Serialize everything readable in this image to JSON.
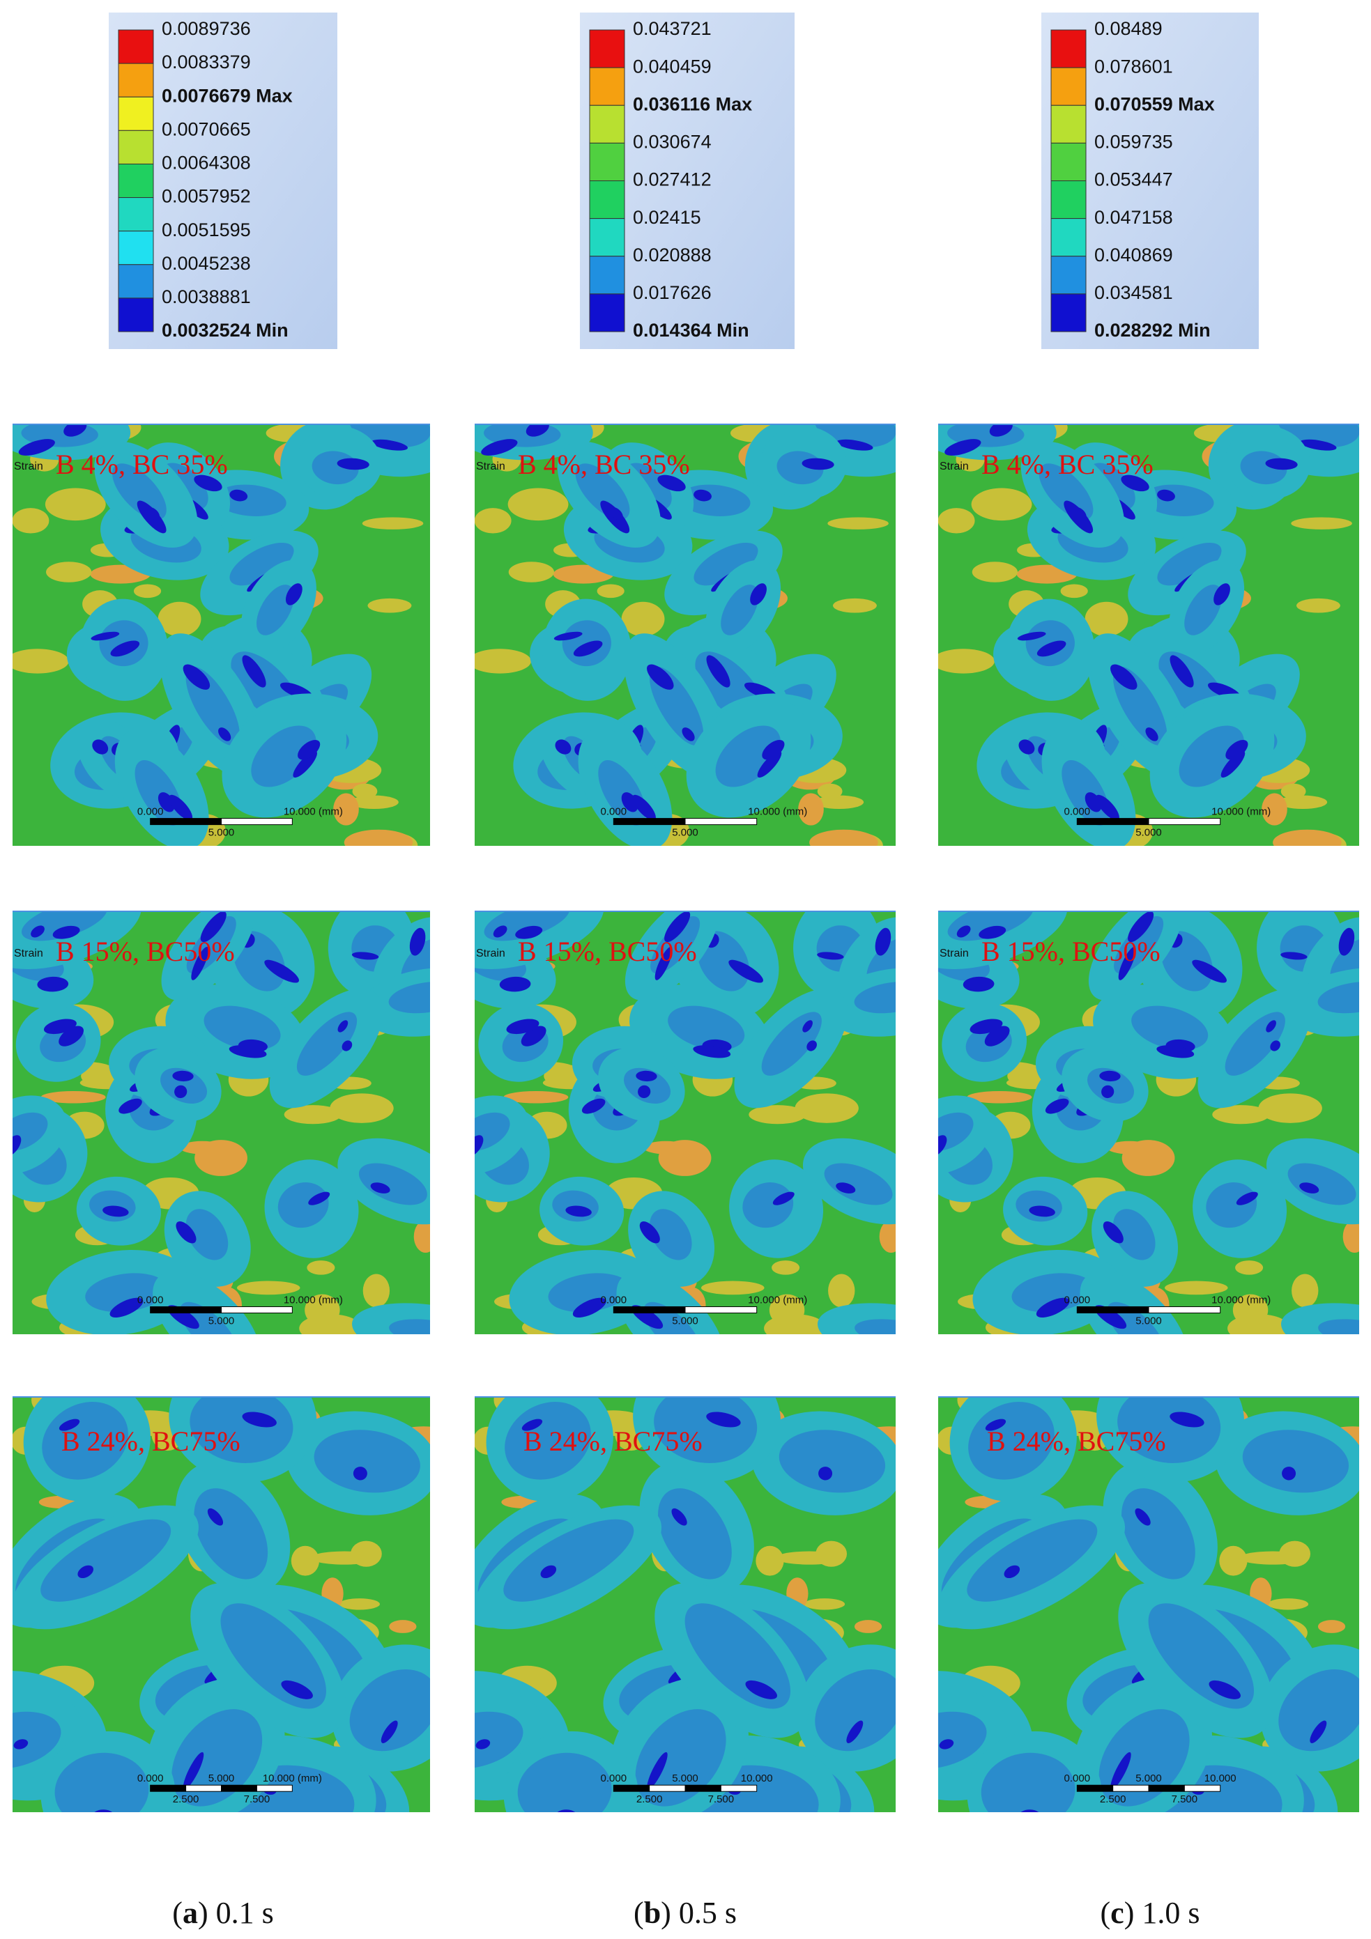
{
  "columns": [
    {
      "legend": {
        "entries": [
          "0.0089736",
          "0.0083379",
          "0.0076679 Max",
          "0.0070665",
          "0.0064308",
          "0.0057952",
          "0.0051595",
          "0.0045238",
          "0.0038881",
          "0.0032524 Min"
        ]
      },
      "panels": [
        {
          "label": "B 4%, BC 35%",
          "strain": "Strain",
          "scale_top": [
            "0.000",
            "10.000 (mm)"
          ],
          "scale_bottom": [
            "5.000"
          ]
        },
        {
          "label": "B 15%, BC50%",
          "strain": "Strain",
          "scale_top": [
            "0.000",
            "10.000 (mm)"
          ],
          "scale_bottom": [
            "5.000"
          ]
        },
        {
          "label": "B 24%, BC75%",
          "scale_top": [
            "0.000",
            "5.000",
            "10.000 (mm)"
          ],
          "scale_bottom": [
            "2.500",
            "7.500"
          ]
        }
      ],
      "caption": [
        "(",
        "a",
        ") 0.1 s"
      ]
    },
    {
      "legend": {
        "entries": [
          "0.043721",
          "0.040459",
          "0.036116 Max",
          "0.030674",
          "0.027412",
          "0.02415",
          "0.020888",
          "0.017626",
          "0.014364 Min"
        ]
      },
      "panels": [
        {
          "label": "B 4%, BC 35%",
          "strain": "Strain",
          "scale_top": [
            "0.000",
            "10.000 (mm)"
          ],
          "scale_bottom": [
            "5.000"
          ]
        },
        {
          "label": "B 15%, BC50%",
          "strain": "Strain",
          "scale_top": [
            "0.000",
            "10.000 (mm)"
          ],
          "scale_bottom": [
            "5.000"
          ]
        },
        {
          "label": "B 24%, BC75%",
          "scale_top": [
            "0.000",
            "5.000",
            "10.000"
          ],
          "scale_bottom": [
            "2.500",
            "7.500"
          ]
        }
      ],
      "caption": [
        "(",
        "b",
        ") 0.5 s"
      ]
    },
    {
      "legend": {
        "entries": [
          "0.08489",
          "0.078601",
          "0.070559 Max",
          "0.059735",
          "0.053447",
          "0.047158",
          "0.040869",
          "0.034581",
          "0.028292 Min"
        ]
      },
      "panels": [
        {
          "label": "B 4%, BC 35%",
          "strain": "Strain",
          "scale_top": [
            "0.000",
            "10.000 (mm)"
          ],
          "scale_bottom": [
            "5.000"
          ]
        },
        {
          "label": "B 15%, BC50%",
          "strain": "Strain",
          "scale_top": [
            "0.000",
            "10.000 (mm)"
          ],
          "scale_bottom": [
            "5.000"
          ]
        },
        {
          "label": "B 24%, BC75%",
          "scale_top": [
            "0.000",
            "5.000",
            "10.000"
          ],
          "scale_bottom": [
            "2.500",
            "7.500"
          ]
        }
      ],
      "caption": [
        "(",
        "c",
        ") 1.0 s"
      ]
    }
  ]
}
